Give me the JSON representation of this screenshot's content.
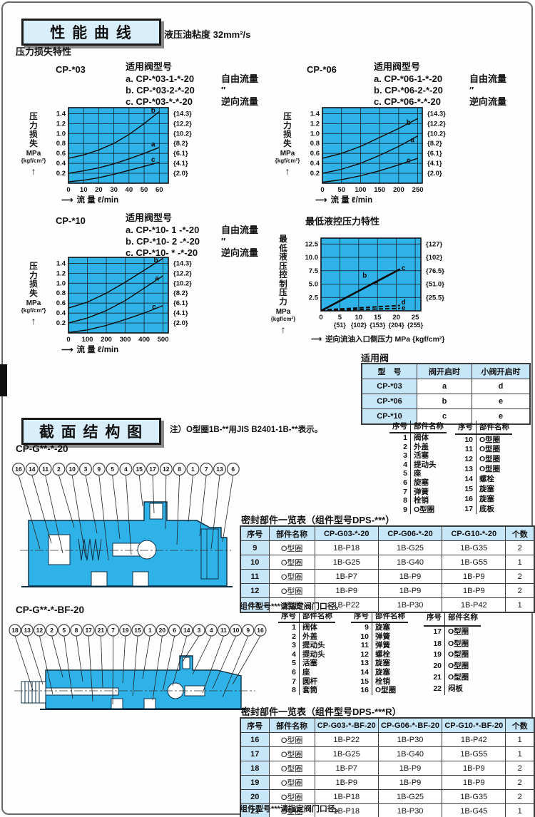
{
  "colors": {
    "chart_bg": "#2fb2e8",
    "table_header_bg": "#c7e6f8",
    "section_header_bg": "#d9eefb",
    "diagram_body": "#2fb2e8"
  },
  "performance": {
    "section_title": "性 能 曲 线",
    "viscosity_note": "液压油粘度 32mm²/s",
    "subtitle": "压力损失特性",
    "pilot_title": "最低液控压力特性",
    "groups": [
      {
        "model": "CP-*03",
        "list_title": "适用阀型号",
        "items": [
          {
            "code": "a. CP-*03-1-*-20",
            "flow": "自由流量"
          },
          {
            "code": "b. CP-*03-2-*-20",
            "flow": "″"
          },
          {
            "code": "c. CP-*03-*-*-20",
            "flow": "逆向流量"
          }
        ]
      },
      {
        "model": "CP-*06",
        "list_title": "适用阀型号",
        "items": [
          {
            "code": "a. CP-*06-1-*-20",
            "flow": "自由流量"
          },
          {
            "code": "b. CP-*06-2-*-20",
            "flow": "″"
          },
          {
            "code": "c. CP-*06-*-*-20",
            "flow": "逆向流量"
          }
        ]
      },
      {
        "model": "CP-*10",
        "list_title": "适用阀型号",
        "items": [
          {
            "code": "a. CP-*10- 1 -*-20",
            "flow": "自由流量"
          },
          {
            "code": "b. CP-*10- 2 -*-20",
            "flow": "″"
          },
          {
            "code": "c. CP-*10- * -*-20",
            "flow": "逆向流量"
          }
        ]
      }
    ]
  },
  "chart_data": [
    {
      "type": "line",
      "name": "CP-*03",
      "xlabel": "流 量 ℓ/min",
      "ylabel": "压力损失",
      "yunit": "MPa",
      "yunit2": "{kgf/cm²}",
      "xticks": [
        0,
        10,
        20,
        30,
        40,
        50,
        60
      ],
      "xtick_labels": [
        "0",
        "10",
        "20",
        "30",
        "40",
        "50",
        "60"
      ],
      "yticks": [
        0.2,
        0.4,
        0.6,
        0.8,
        1.0,
        1.2,
        1.4
      ],
      "ytick_labels": [
        "0.2",
        "0.4",
        "0.6",
        "0.8",
        "1.0",
        "1.2",
        "1.4"
      ],
      "yticks_right": [
        "{2.0}",
        "{4.1}",
        "{6.1}",
        "{8.2}",
        "{10.2}",
        "{12.2}",
        "{14.3}"
      ],
      "xlim": [
        0,
        66
      ],
      "ylim": [
        0,
        1.52
      ],
      "grid": true,
      "legend": "inline-letters",
      "series": [
        {
          "name": "b",
          "points": [
            [
              0,
              0.5
            ],
            [
              10,
              0.57
            ],
            [
              20,
              0.67
            ],
            [
              30,
              0.8
            ],
            [
              40,
              0.98
            ],
            [
              50,
              1.2
            ],
            [
              60,
              1.44
            ]
          ]
        },
        {
          "name": "a",
          "points": [
            [
              0,
              0.2
            ],
            [
              10,
              0.25
            ],
            [
              20,
              0.31
            ],
            [
              30,
              0.39
            ],
            [
              40,
              0.49
            ],
            [
              50,
              0.6
            ],
            [
              60,
              0.72
            ]
          ]
        },
        {
          "name": "c",
          "points": [
            [
              0,
              0.03
            ],
            [
              10,
              0.06
            ],
            [
              20,
              0.11
            ],
            [
              30,
              0.18
            ],
            [
              40,
              0.26
            ],
            [
              50,
              0.34
            ],
            [
              60,
              0.42
            ]
          ]
        }
      ],
      "labels": [
        {
          "t": "b",
          "x": 56,
          "y": 1.46
        },
        {
          "t": "a",
          "x": 56,
          "y": 0.78
        },
        {
          "t": "c",
          "x": 56,
          "y": 0.47
        }
      ]
    },
    {
      "type": "line",
      "name": "CP-*06",
      "xlabel": "流 量 ℓ/min",
      "ylabel": "压力损失",
      "yunit": "MPa",
      "yunit2": "{kgf/cm²}",
      "xticks": [
        0,
        50,
        100,
        150,
        200,
        250
      ],
      "xtick_labels": [
        "0",
        "50",
        "100",
        "150",
        "200",
        "250"
      ],
      "yticks": [
        0.2,
        0.4,
        0.6,
        0.8,
        1.0,
        1.2,
        1.4
      ],
      "ytick_labels": [
        "0.2",
        "0.4",
        "0.6",
        "0.8",
        "1.0",
        "1.2",
        "1.4"
      ],
      "yticks_right": [
        "{2.0}",
        "{4.1}",
        "{6.1}",
        "{8.2}",
        "{10.2}",
        "{12.2}",
        "{14.3}"
      ],
      "xlim": [
        0,
        262
      ],
      "ylim": [
        0,
        1.52
      ],
      "grid": true,
      "legend": "inline-letters",
      "series": [
        {
          "name": "b",
          "points": [
            [
              0,
              0.5
            ],
            [
              50,
              0.6
            ],
            [
              100,
              0.74
            ],
            [
              150,
              0.92
            ],
            [
              200,
              1.1
            ],
            [
              250,
              1.3
            ]
          ]
        },
        {
          "name": "a",
          "points": [
            [
              0,
              0.2
            ],
            [
              50,
              0.28
            ],
            [
              100,
              0.4
            ],
            [
              150,
              0.56
            ],
            [
              200,
              0.74
            ],
            [
              250,
              0.95
            ]
          ]
        },
        {
          "name": "c",
          "points": [
            [
              0,
              0.02
            ],
            [
              50,
              0.07
            ],
            [
              100,
              0.15
            ],
            [
              150,
              0.25
            ],
            [
              200,
              0.37
            ],
            [
              250,
              0.5
            ]
          ]
        }
      ],
      "labels": [
        {
          "t": "b",
          "x": 226,
          "y": 1.22
        },
        {
          "t": "a",
          "x": 236,
          "y": 0.87
        },
        {
          "t": "c",
          "x": 226,
          "y": 0.46
        }
      ]
    },
    {
      "type": "line",
      "name": "CP-*10",
      "xlabel": "流 量 ℓ/min",
      "ylabel": "压力损失",
      "yunit": "MPa",
      "yunit2": "{kgf/cm²}",
      "xticks": [
        0,
        100,
        200,
        300,
        400,
        500
      ],
      "xtick_labels": [
        "0",
        "100",
        "200",
        "300",
        "400",
        "500"
      ],
      "yticks": [
        0.2,
        0.4,
        0.6,
        0.8,
        1.0,
        1.2,
        1.4
      ],
      "ytick_labels": [
        "0.2",
        "0.4",
        "0.6",
        "0.8",
        "1.0",
        "1.2",
        "1.4"
      ],
      "yticks_right": [
        "{2.0}",
        "{4.1}",
        "{6.1}",
        "{8.2}",
        "{10.2}",
        "{12.2}",
        "{14.3}"
      ],
      "xlim": [
        0,
        528
      ],
      "ylim": [
        0,
        1.52
      ],
      "grid": true,
      "legend": "inline-letters",
      "series": [
        {
          "name": "b",
          "points": [
            [
              0,
              0.5
            ],
            [
              100,
              0.62
            ],
            [
              200,
              0.8
            ],
            [
              300,
              1.02
            ],
            [
              400,
              1.26
            ],
            [
              500,
              1.5
            ]
          ]
        },
        {
          "name": "a",
          "points": [
            [
              0,
              0.2
            ],
            [
              100,
              0.3
            ],
            [
              200,
              0.45
            ],
            [
              300,
              0.65
            ],
            [
              400,
              0.9
            ],
            [
              500,
              1.15
            ]
          ]
        },
        {
          "name": "c",
          "points": [
            [
              0,
              0.01
            ],
            [
              100,
              0.06
            ],
            [
              200,
              0.15
            ],
            [
              300,
              0.27
            ],
            [
              400,
              0.4
            ],
            [
              500,
              0.55
            ]
          ]
        }
      ],
      "labels": [
        {
          "t": "b",
          "x": 462,
          "y": 1.46
        },
        {
          "t": "a",
          "x": 468,
          "y": 1.1
        },
        {
          "t": "c",
          "x": 452,
          "y": 0.52
        }
      ]
    },
    {
      "type": "line",
      "name": "最低液控压力特性",
      "xlabel": "逆向流油入口侧压力  MPa {kgf/cm²}",
      "ylabel": "最低液压控制压力",
      "yunit": "MPa",
      "yunit2": "{kgf/cm²}",
      "xticks": [
        0,
        5,
        10,
        15,
        20,
        25
      ],
      "xtick_labels": [
        "0",
        "5",
        "10",
        "15",
        "20",
        "25"
      ],
      "xtick_labels2": [
        "",
        "{51}",
        "{102}",
        "{153}",
        "{204}",
        "{255}"
      ],
      "yticks": [
        2.5,
        5,
        7.5,
        10,
        12.5
      ],
      "ytick_labels": [
        "2.5",
        "5.0",
        "7.5",
        "10.0",
        "12.5"
      ],
      "yticks_right": [
        "{25.5}",
        "{51.0}",
        "{76.5}",
        "{102}",
        "{127}"
      ],
      "xlim": [
        0,
        26.5
      ],
      "ylim": [
        0,
        13.6
      ],
      "grid": true,
      "legend": "inline-letters",
      "series": [
        {
          "name": "abc",
          "points": [
            [
              0,
              0
            ],
            [
              21,
              7.8
            ]
          ],
          "width": 2.6
        },
        {
          "name": "d",
          "points": [
            [
              0,
              0.15
            ],
            [
              21,
              1.0
            ]
          ],
          "dash": true,
          "width": 2
        },
        {
          "name": "e",
          "points": [
            [
              0,
              0.05
            ],
            [
              21,
              0.45
            ]
          ],
          "dash": true,
          "width": 2
        }
      ],
      "labels": [
        {
          "t": "b",
          "x": 11.6,
          "y": 6.6
        },
        {
          "t": "a",
          "x": 14.6,
          "y": 5.3
        },
        {
          "t": "c",
          "x": 21.9,
          "y": 8.0
        },
        {
          "t": "d",
          "x": 21.9,
          "y": 1.6
        },
        {
          "t": "e",
          "x": 21.9,
          "y": 0.55
        }
      ]
    }
  ],
  "applicable_valves": {
    "title": "适用阀",
    "headers": [
      "型　号",
      "阀开启时",
      "小阀开启时"
    ],
    "rows": [
      [
        "CP-*03",
        "a",
        "d"
      ],
      [
        "CP-*06",
        "b",
        "e"
      ],
      [
        "CP-*10",
        "c",
        "e"
      ]
    ]
  },
  "section2": {
    "section_title": "截 面 结 构 图",
    "note": "注）O型圈1B-**用JIS B2401-1B-**表示。",
    "diagram1_label": "CP-G**-*-20",
    "diagram2_label": "CP-G**-*-BF-20",
    "parts_headers": [
      "序号",
      "部件名称"
    ],
    "parts_list_1": [
      [
        [
          "1",
          "阀体"
        ],
        [
          "2",
          "外盖"
        ],
        [
          "3",
          "活塞"
        ],
        [
          "4",
          "提动头"
        ],
        [
          "5",
          "座"
        ],
        [
          "6",
          "旋塞"
        ],
        [
          "7",
          "弹簧"
        ],
        [
          "8",
          "栓销"
        ],
        [
          "9",
          "O型圈"
        ]
      ],
      [
        [
          "10",
          "O型圈"
        ],
        [
          "11",
          "O型圈"
        ],
        [
          "12",
          "O型圈"
        ],
        [
          "13",
          "O型圈"
        ],
        [
          "14",
          "螺栓"
        ],
        [
          "15",
          "旋塞"
        ],
        [
          "16",
          "旋塞"
        ],
        [
          "17",
          "底板"
        ]
      ]
    ],
    "parts_list_2": [
      [
        [
          "1",
          "阀体"
        ],
        [
          "2",
          "外盖"
        ],
        [
          "3",
          "提动头"
        ],
        [
          "4",
          "提动头"
        ],
        [
          "5",
          "活塞"
        ],
        [
          "6",
          "座"
        ],
        [
          "7",
          "圆杆"
        ],
        [
          "8",
          "套筒"
        ]
      ],
      [
        [
          "9",
          "旋塞"
        ],
        [
          "10",
          "弹簧"
        ],
        [
          "11",
          "弹簧"
        ],
        [
          "12",
          "螺栓"
        ],
        [
          "13",
          "旋塞"
        ],
        [
          "14",
          "旋塞"
        ],
        [
          "15",
          "栓销"
        ],
        [
          "16",
          "O型圈"
        ]
      ],
      [
        [
          "17",
          "O型圈"
        ],
        [
          "18",
          "O型圈"
        ],
        [
          "19",
          "O型圈"
        ],
        [
          "20",
          "O型圈"
        ],
        [
          "21",
          "O型圈"
        ],
        [
          "22",
          "闷板"
        ]
      ]
    ],
    "diagram1_numbers": [
      "16",
      "14",
      "11",
      "2",
      "10",
      "3",
      "9",
      "5",
      "4",
      "15",
      "17",
      "12",
      "8",
      "1",
      "7",
      "13",
      "6"
    ],
    "diagram2_numbers": [
      "18",
      "13",
      "12",
      "2",
      "5",
      "8",
      "17",
      "21",
      "7",
      "19",
      "15",
      "1",
      "20",
      "6",
      "14",
      "3",
      "4",
      "11",
      "10",
      "9",
      "16"
    ],
    "seal_table_1": {
      "title": "密封部件一览表（组件型号DPS-***）",
      "headers": [
        "序号",
        "部件名称",
        "CP-G03-*-20",
        "CP-G06-*-20",
        "CP-G10-*-20",
        "个数"
      ],
      "rows": [
        [
          "9",
          "O型圈",
          "1B-P18",
          "1B-G25",
          "1B-G35",
          "2"
        ],
        [
          "10",
          "O型圈",
          "1B-G25",
          "1B-G40",
          "1B-G55",
          "1"
        ],
        [
          "11",
          "O型圈",
          "1B-P7",
          "1B-P9",
          "1B-P9",
          "2"
        ],
        [
          "12",
          "O型圈",
          "1B-P9",
          "1B-P9",
          "1B-P9",
          "2"
        ],
        [
          "13",
          "O型圈",
          "1B-P22",
          "1B-P30",
          "1B-P42",
          "1"
        ]
      ],
      "footnote": "组件型号***请指定阀门口径。"
    },
    "seal_table_2": {
      "title": "密封部件一览表（组件型号DPS-***R）",
      "headers": [
        "序号",
        "部件名称",
        "CP-G03-*-BF-20",
        "CP-G06-*-BF-20",
        "CP-G10-*-BF-20",
        "个数"
      ],
      "rows": [
        [
          "16",
          "O型圈",
          "1B-P22",
          "1B-P30",
          "1B-P42",
          "1"
        ],
        [
          "17",
          "O型圈",
          "1B-G25",
          "1B-G40",
          "1B-G55",
          "1"
        ],
        [
          "18",
          "O型圈",
          "1B-P7",
          "1B-P9",
          "1B-P9",
          "2"
        ],
        [
          "19",
          "O型圈",
          "1B-P9",
          "1B-P9",
          "1B-P9",
          "2"
        ],
        [
          "20",
          "O型圈",
          "1B-P18",
          "1B-G25",
          "1B-G35",
          "2"
        ],
        [
          "21",
          "O型圈",
          "1B-P18",
          "1B-P30",
          "1B-G45",
          "1"
        ]
      ],
      "footnote": "组件型号***请指定阀门口径。"
    }
  }
}
